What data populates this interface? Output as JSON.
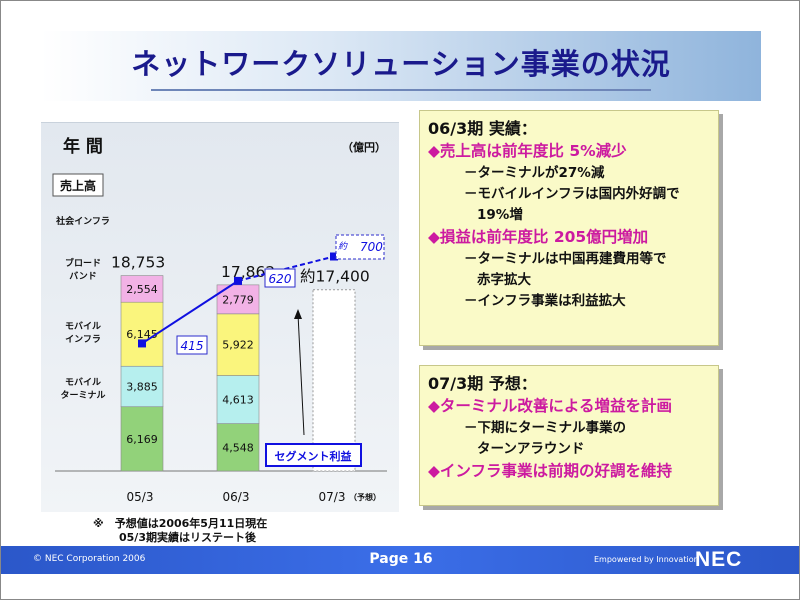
{
  "slide": {
    "title": "ネットワークソリューション事業の状況"
  },
  "chart_data": {
    "type": "bar",
    "title": "年 間",
    "unit": "（億円）",
    "categories": [
      "05/3",
      "06/3",
      "07/3"
    ],
    "forecast_tag": "予想",
    "series": [
      {
        "name": "モバイル ターミナル",
        "values": [
          6169,
          4548,
          null
        ],
        "labels": [
          "6,169",
          "4,548",
          null
        ],
        "color": "#92d27a"
      },
      {
        "name": "モバイル インフラ",
        "values": [
          3885,
          4613,
          null
        ],
        "labels": [
          "3,885",
          "4,613",
          null
        ],
        "color": "#b6efee"
      },
      {
        "name": "ブロード バンド",
        "values": [
          6145,
          5922,
          null
        ],
        "labels": [
          "6,145",
          "5,922",
          null
        ],
        "color": "#faf57d"
      },
      {
        "name": "社会インフラ",
        "values": [
          2554,
          2779,
          null
        ],
        "labels": [
          "2,554",
          "2,779",
          null
        ],
        "color": "#f2b2e6"
      }
    ],
    "totals": [
      "18,753",
      "17,862",
      "約17,400"
    ],
    "total_values": [
      18753,
      17862,
      17400
    ],
    "sales_label": "売上高",
    "segment_profit": {
      "name": "セグメント利益",
      "values": [
        415,
        620,
        700
      ],
      "labels": [
        "415",
        "620",
        "700"
      ],
      "forecast_prefix": "約",
      "color": "#1010e0"
    }
  },
  "box1": {
    "heading": "06/3期 実績：",
    "items": [
      {
        "text": "◆売上高は前年度比 5%減少",
        "sub": [
          "－ターミナルが27%減",
          "－モバイルインフラは国内外好調で",
          "19%増"
        ]
      },
      {
        "text": "◆損益は前年度比 205億円増加",
        "sub": [
          "－ターミナルは中国再建費用等で",
          "赤字拡大",
          "－インフラ事業は利益拡大"
        ]
      }
    ]
  },
  "box2": {
    "heading": "07/3期 予想：",
    "items": [
      {
        "text": "◆ターミナル改善による増益を計画",
        "sub": [
          "－下期にターミナル事業の",
          "ターンアラウンド"
        ]
      },
      {
        "text": "◆インフラ事業は前期の好調を維持",
        "sub": []
      }
    ]
  },
  "notes": {
    "line1": "※　予想値は2006年5月11日現在",
    "line2": "05/3期実績はリステート後"
  },
  "footer": {
    "copyright": "© NEC Corporation 2006",
    "page": "Page 16",
    "tagline": "Empowered by Innovation",
    "logo": "NEC"
  }
}
